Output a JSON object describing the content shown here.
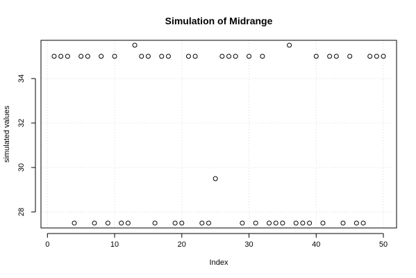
{
  "chart_data": {
    "type": "scatter",
    "title": "Simulation of Midrange",
    "xlabel": "Index",
    "ylabel": "simulated values",
    "xlim": [
      -0.96,
      51.96
    ],
    "ylim": [
      27.28,
      35.72
    ],
    "xticks": [
      0,
      10,
      20,
      30,
      40,
      50
    ],
    "yticks": [
      28,
      30,
      32,
      34
    ],
    "grid": true,
    "marker": "open-circle",
    "x": [
      1,
      2,
      3,
      4,
      5,
      6,
      7,
      8,
      9,
      10,
      11,
      12,
      13,
      14,
      15,
      16,
      17,
      18,
      19,
      20,
      21,
      22,
      23,
      24,
      25,
      26,
      27,
      28,
      29,
      30,
      31,
      32,
      33,
      34,
      35,
      36,
      37,
      38,
      39,
      40,
      41,
      42,
      43,
      44,
      45,
      46,
      47,
      48,
      49,
      50
    ],
    "values": [
      35,
      35,
      35,
      27.5,
      35,
      35,
      27.5,
      35,
      27.5,
      35,
      27.5,
      27.5,
      35.5,
      35,
      35,
      27.5,
      35,
      35,
      27.5,
      27.5,
      35,
      35,
      27.5,
      27.5,
      29.5,
      35,
      35,
      35,
      27.5,
      35,
      27.5,
      35,
      27.5,
      27.5,
      27.5,
      35.5,
      27.5,
      27.5,
      27.5,
      35,
      27.5,
      35,
      35,
      27.5,
      35,
      27.5,
      27.5,
      35,
      35,
      35
    ]
  }
}
